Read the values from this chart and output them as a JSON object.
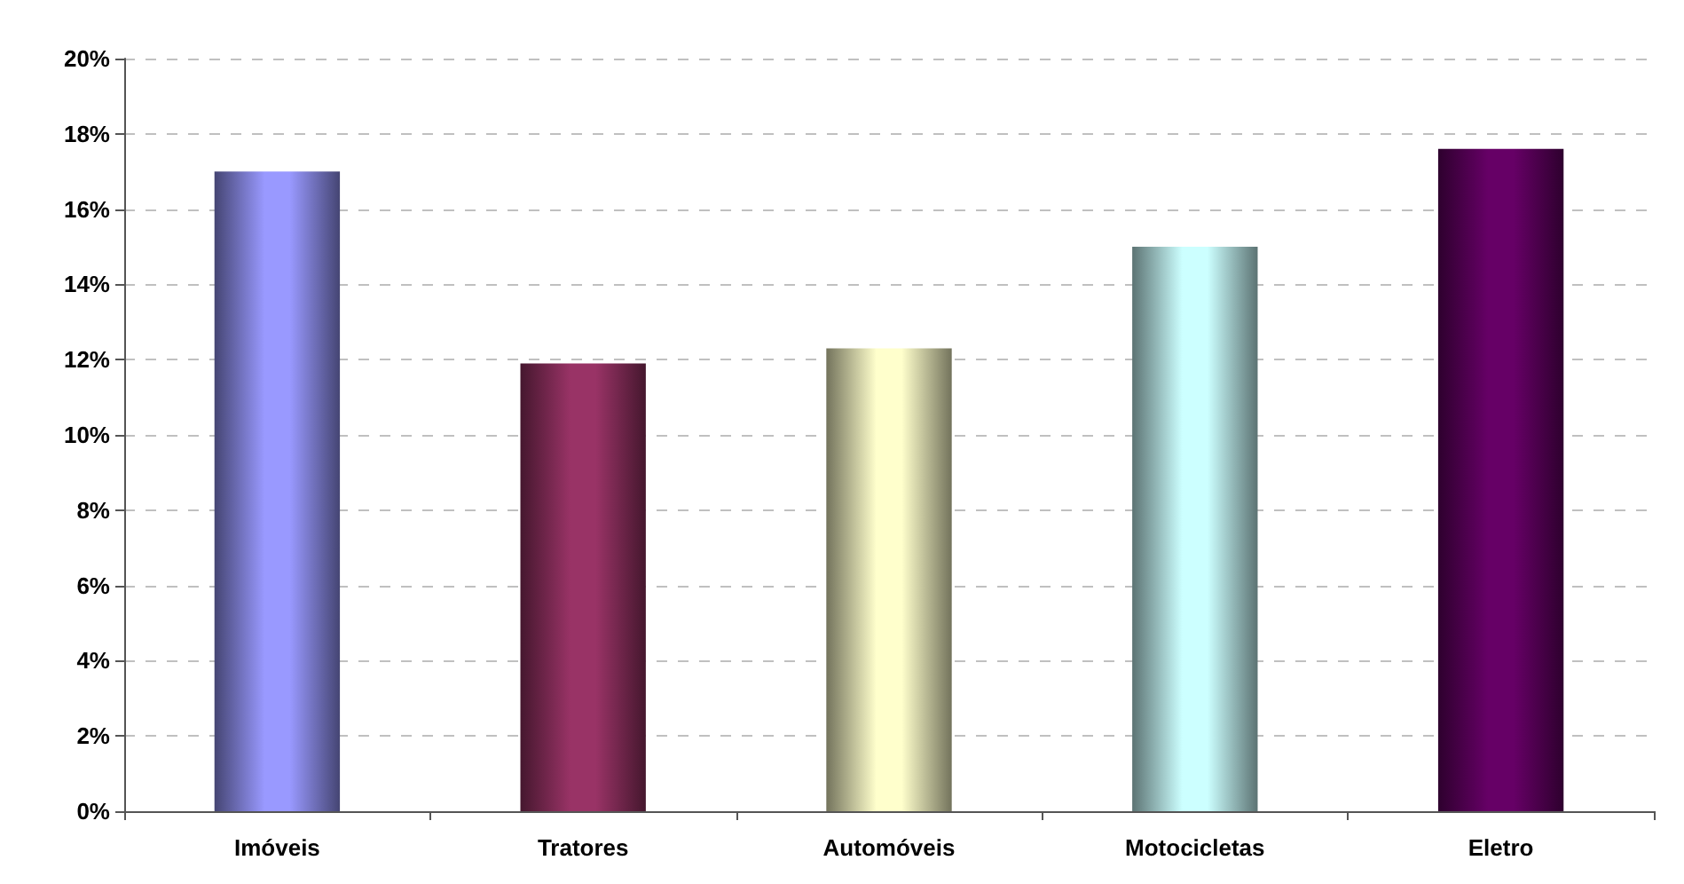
{
  "chart_data": {
    "type": "bar",
    "categories": [
      "Imóveis",
      "Tratores",
      "Automóveis",
      "Motocicletas",
      "Eletro"
    ],
    "values": [
      17.0,
      11.9,
      12.3,
      15.0,
      17.6
    ],
    "colors": [
      "#9999ff",
      "#993366",
      "#ffffcc",
      "#ccffff",
      "#660066"
    ],
    "ylim": [
      0,
      20
    ],
    "yticks": [
      {
        "value": 0,
        "label": "0%"
      },
      {
        "value": 2,
        "label": "2%"
      },
      {
        "value": 4,
        "label": "4%"
      },
      {
        "value": 6,
        "label": "6%"
      },
      {
        "value": 8,
        "label": "8%"
      },
      {
        "value": 10,
        "label": "10%"
      },
      {
        "value": 12,
        "label": "12%"
      },
      {
        "value": 14,
        "label": "14%"
      },
      {
        "value": 16,
        "label": "16%"
      },
      {
        "value": 18,
        "label": "18%"
      },
      {
        "value": 20,
        "label": "20%"
      }
    ],
    "grid": "y"
  }
}
